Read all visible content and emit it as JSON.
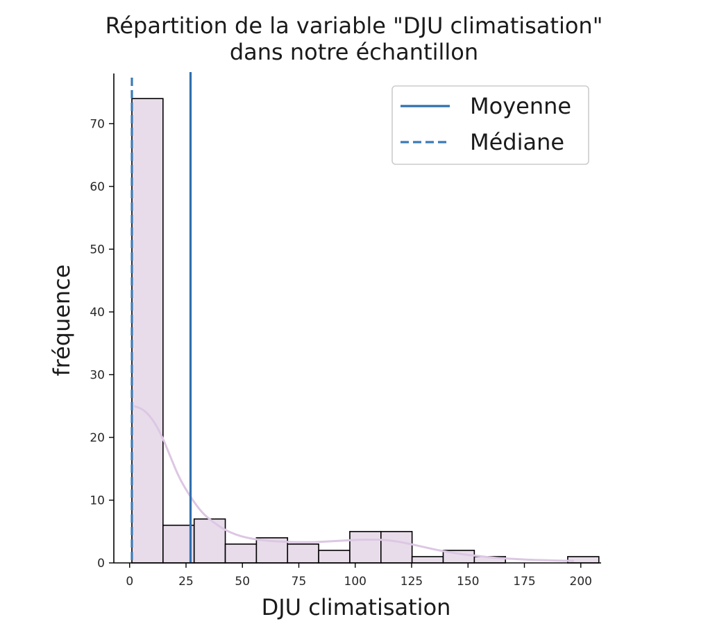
{
  "chart_data": {
    "type": "bar",
    "title_line1": "Répartition de la variable \"DJU climatisation\"",
    "title_line2": "dans notre échantillon",
    "xlabel": "DJU climatisation",
    "ylabel": "fréquence",
    "xlim": [
      -7,
      209
    ],
    "ylim": [
      0,
      78
    ],
    "x_ticks": [
      0,
      25,
      50,
      75,
      100,
      125,
      150,
      175,
      200
    ],
    "y_ticks": [
      0,
      10,
      20,
      30,
      40,
      50,
      60,
      70
    ],
    "bins": [
      {
        "x0": 1,
        "x1": 14.8,
        "count": 74
      },
      {
        "x0": 14.8,
        "x1": 28.6,
        "count": 6
      },
      {
        "x0": 28.6,
        "x1": 42.4,
        "count": 7
      },
      {
        "x0": 42.4,
        "x1": 56.2,
        "count": 3
      },
      {
        "x0": 56.2,
        "x1": 70,
        "count": 4
      },
      {
        "x0": 70,
        "x1": 83.8,
        "count": 3
      },
      {
        "x0": 83.8,
        "x1": 97.6,
        "count": 2
      },
      {
        "x0": 97.6,
        "x1": 111.4,
        "count": 5
      },
      {
        "x0": 111.4,
        "x1": 125.2,
        "count": 5
      },
      {
        "x0": 125.2,
        "x1": 139,
        "count": 1
      },
      {
        "x0": 139,
        "x1": 152.8,
        "count": 2
      },
      {
        "x0": 152.8,
        "x1": 166.6,
        "count": 1
      },
      {
        "x0": 166.6,
        "x1": 180.4,
        "count": 0
      },
      {
        "x0": 180.4,
        "x1": 194.2,
        "count": 0
      },
      {
        "x0": 194.2,
        "x1": 208,
        "count": 1
      }
    ],
    "kde": [
      [
        2,
        25
      ],
      [
        6,
        24.5
      ],
      [
        10,
        23
      ],
      [
        14,
        20.5
      ],
      [
        18,
        17
      ],
      [
        22,
        13.5
      ],
      [
        27,
        10.5
      ],
      [
        32,
        8
      ],
      [
        37,
        6.5
      ],
      [
        42,
        5.3
      ],
      [
        47,
        4.5
      ],
      [
        52,
        4
      ],
      [
        57,
        3.7
      ],
      [
        62,
        3.5
      ],
      [
        67,
        3.4
      ],
      [
        72,
        3.3
      ],
      [
        77,
        3.3
      ],
      [
        82,
        3.3
      ],
      [
        87,
        3.4
      ],
      [
        92,
        3.5
      ],
      [
        97,
        3.6
      ],
      [
        102,
        3.7
      ],
      [
        107,
        3.7
      ],
      [
        112,
        3.7
      ],
      [
        117,
        3.5
      ],
      [
        122,
        3.2
      ],
      [
        127,
        2.8
      ],
      [
        132,
        2.4
      ],
      [
        137,
        2
      ],
      [
        142,
        1.7
      ],
      [
        147,
        1.4
      ],
      [
        152,
        1.2
      ],
      [
        157,
        1
      ],
      [
        162,
        0.8
      ],
      [
        167,
        0.7
      ],
      [
        172,
        0.6
      ],
      [
        177,
        0.5
      ],
      [
        182,
        0.45
      ],
      [
        187,
        0.4
      ],
      [
        192,
        0.35
      ],
      [
        197,
        0.3
      ]
    ],
    "mean": 27,
    "median": 1,
    "legend": [
      {
        "label": "Moyenne",
        "style": "solid"
      },
      {
        "label": "Médiane",
        "style": "dashed"
      }
    ],
    "legend_position": "top-right",
    "grid": false,
    "colors": {
      "bar_fill": "#e8dcea",
      "bar_edge": "#000000",
      "kde": "#dcc7e3",
      "mean_line": "#2f6fae",
      "median_line": "#3b7ab8"
    }
  }
}
